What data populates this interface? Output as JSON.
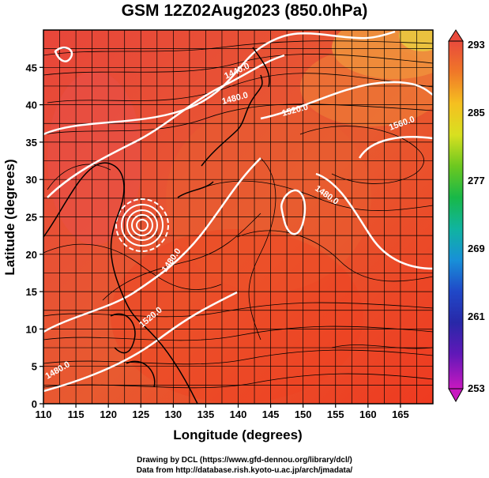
{
  "title": "GSM 12Z02Aug2023 (850.0hPa)",
  "x_axis": {
    "label": "Longitude (degrees)",
    "range": [
      110,
      170
    ],
    "ticks": [
      "110",
      "115",
      "120",
      "125",
      "130",
      "135",
      "140",
      "145",
      "150",
      "155",
      "160",
      "165"
    ]
  },
  "y_axis": {
    "label": "Latitude  (degrees)",
    "range": [
      0,
      50
    ],
    "ticks": [
      "0",
      "5",
      "10",
      "15",
      "20",
      "25",
      "30",
      "35",
      "40",
      "45"
    ]
  },
  "colorbar": {
    "ticks": [
      "293",
      "285",
      "277",
      "269",
      "261",
      "253"
    ],
    "colors_top_to_bottom": [
      "#e84a3c",
      "#f07828",
      "#f5c020",
      "#d8e020",
      "#6cc820",
      "#18b848",
      "#10b4a0",
      "#1890d8",
      "#2048c8",
      "#2828a8",
      "#6018b8",
      "#c818c0"
    ]
  },
  "contours": {
    "labels": [
      "1440.0",
      "1480.0",
      "1520.0",
      "1560.0",
      "1480.0",
      "1480.0",
      "1520.0",
      "1480.0"
    ],
    "color": "#ffffff"
  },
  "footer": {
    "line1": "Drawing by DCL (https://www.gfd-dennou.org/library/dcl/)",
    "line2": "Data from http://database.rish.kyoto-u.ac.jp/arch/jmadata/"
  }
}
